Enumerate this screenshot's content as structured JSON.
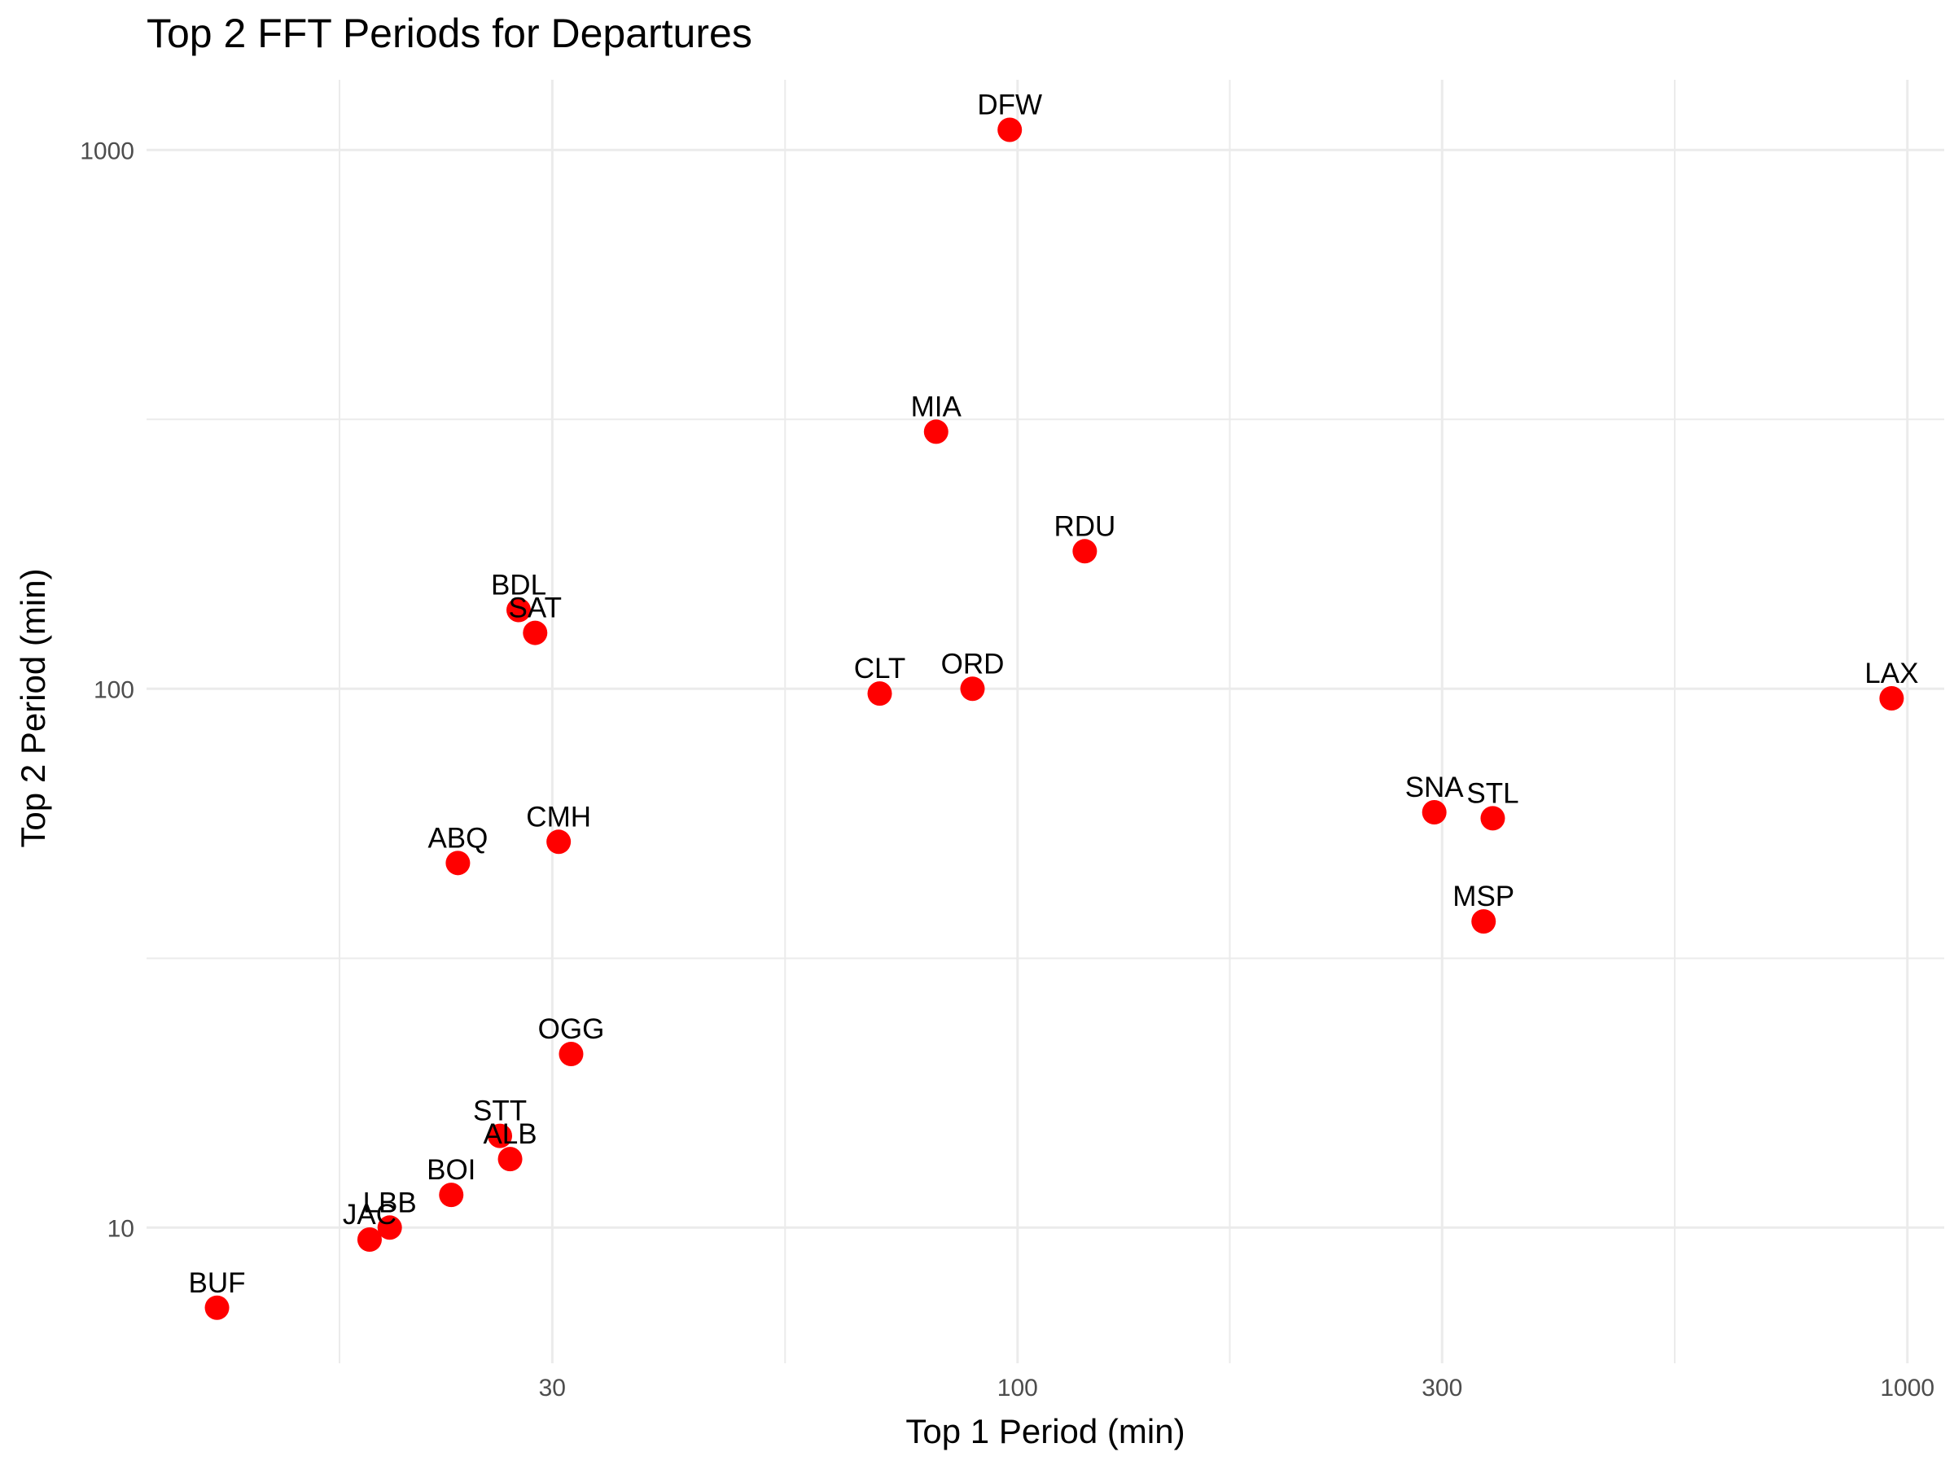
{
  "chart_data": {
    "type": "scatter",
    "title": "Top 2 FFT Periods for Departures",
    "xlabel": "Top 1 Period (min)",
    "ylabel": "Top 2 Period (min)",
    "x_scale": "log10",
    "y_scale": "log10",
    "xlim": [
      10.5,
      1100
    ],
    "ylim": [
      5.6,
      1350
    ],
    "x_ticks": [
      30,
      100,
      300,
      1000
    ],
    "x_tick_labels": [
      "30",
      "100",
      "300",
      "1000"
    ],
    "y_ticks": [
      10,
      100,
      1000
    ],
    "y_tick_labels": [
      "10",
      "100",
      "1000"
    ],
    "x_minor_grid": [
      17.3,
      54.8,
      173.2,
      547.7
    ],
    "y_minor_grid": [
      31.6,
      316.2
    ],
    "grid": true,
    "point_color": "#ff0000",
    "points": [
      {
        "label": "DFW",
        "x": 98,
        "y": 1090
      },
      {
        "label": "MIA",
        "x": 81,
        "y": 300
      },
      {
        "label": "RDU",
        "x": 119,
        "y": 180
      },
      {
        "label": "BDL",
        "x": 27.5,
        "y": 140
      },
      {
        "label": "SAT",
        "x": 28.7,
        "y": 127
      },
      {
        "label": "CLT",
        "x": 70,
        "y": 98
      },
      {
        "label": "ORD",
        "x": 89,
        "y": 100
      },
      {
        "label": "LAX",
        "x": 960,
        "y": 96
      },
      {
        "label": "SNA",
        "x": 294,
        "y": 59
      },
      {
        "label": "STL",
        "x": 342,
        "y": 57.5
      },
      {
        "label": "MSP",
        "x": 334,
        "y": 37
      },
      {
        "label": "CMH",
        "x": 30.5,
        "y": 52
      },
      {
        "label": "ABQ",
        "x": 23.5,
        "y": 47.5
      },
      {
        "label": "OGG",
        "x": 31.5,
        "y": 21
      },
      {
        "label": "STT",
        "x": 26.2,
        "y": 14.8
      },
      {
        "label": "ALB",
        "x": 26.9,
        "y": 13.4
      },
      {
        "label": "BOI",
        "x": 23.1,
        "y": 11.5
      },
      {
        "label": "LBB",
        "x": 19.7,
        "y": 10
      },
      {
        "label": "JAC",
        "x": 18.7,
        "y": 9.5
      },
      {
        "label": "BUF",
        "x": 12.6,
        "y": 7.1
      }
    ]
  }
}
